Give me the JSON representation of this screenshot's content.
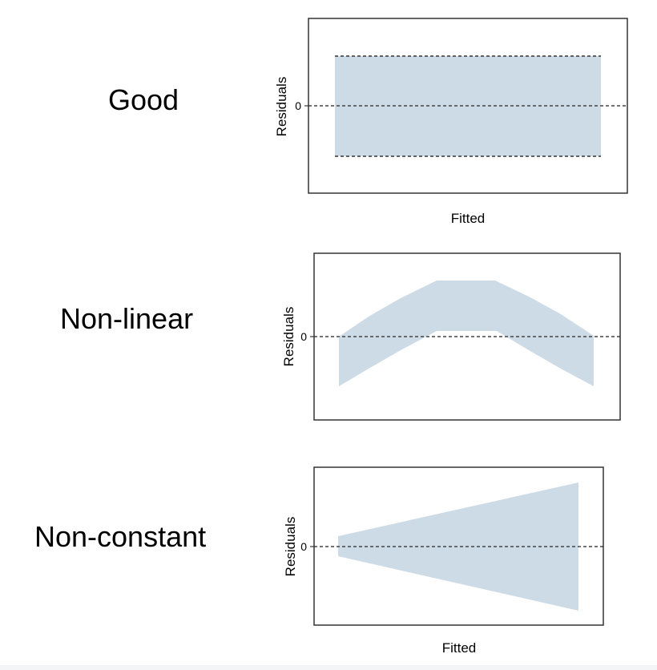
{
  "colors": {
    "band_fill": "#cddbe6",
    "frame": "#333333",
    "zero_line": "#444444"
  },
  "panels": [
    {
      "label": "Good",
      "ylabel": "Residuals",
      "zero_tick": "0",
      "xlabel": "Fitted",
      "pattern": "constant-band"
    },
    {
      "label": "Non-linear",
      "ylabel": "Residuals",
      "zero_tick": "0",
      "xlabel": "",
      "pattern": "inverted-u-band"
    },
    {
      "label": "Non-constant",
      "ylabel": "Residuals",
      "zero_tick": "0",
      "xlabel": "Fitted",
      "pattern": "widening-funnel"
    }
  ]
}
